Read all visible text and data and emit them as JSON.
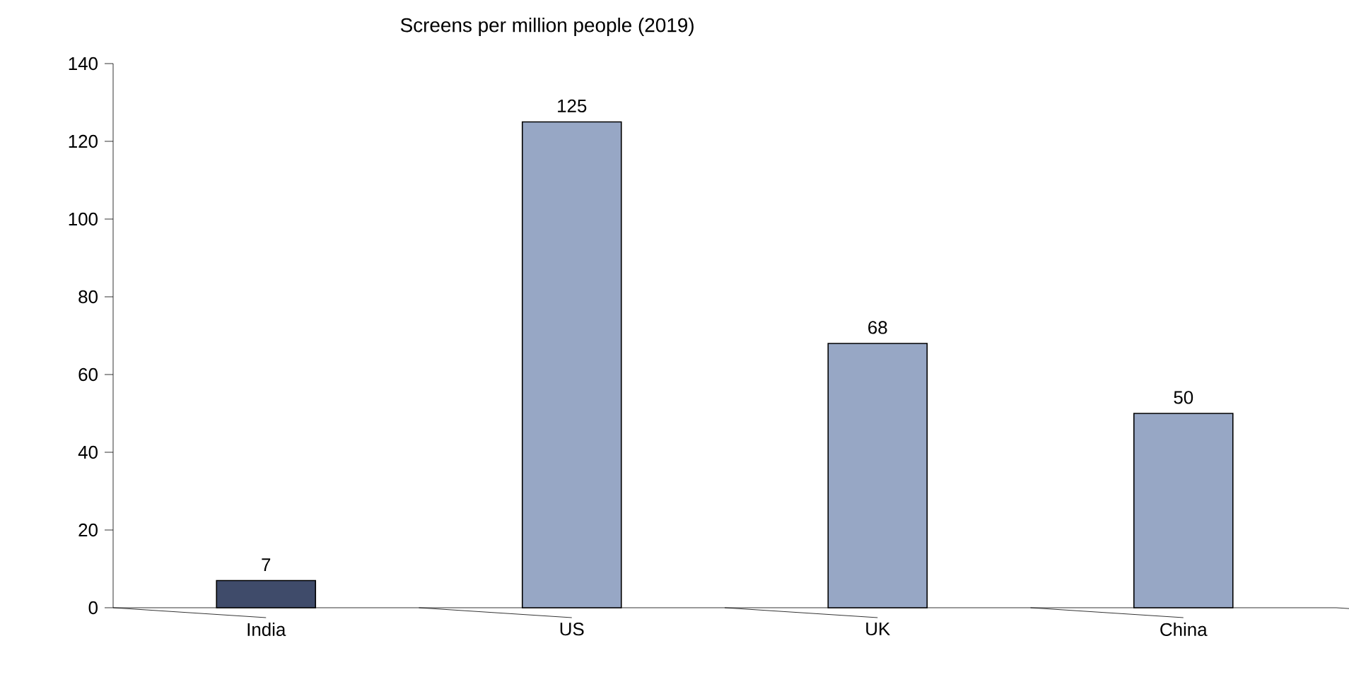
{
  "chart_data": {
    "type": "bar",
    "title": "Screens per million people (2019)",
    "categories": [
      "India",
      "US",
      "UK",
      "China"
    ],
    "values": [
      7,
      125,
      68,
      50
    ],
    "colors": [
      "#3f4b6a",
      "#97a7c5",
      "#97a7c5",
      "#97a7c5"
    ],
    "ylim": [
      0,
      140
    ],
    "yticks": [
      0,
      20,
      40,
      60,
      80,
      100,
      120,
      140
    ],
    "data_labels": true,
    "grid": false
  }
}
